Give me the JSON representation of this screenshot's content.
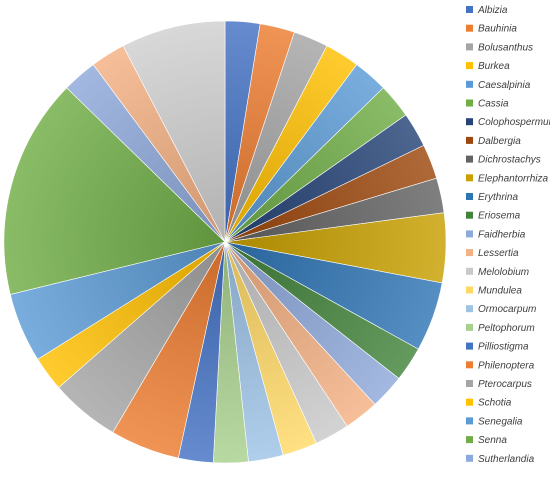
{
  "chart_data": {
    "type": "pie",
    "title": "",
    "legend_position": "right",
    "slices": [
      {
        "label": "Albizia",
        "value": 3,
        "color": "#4472C4"
      },
      {
        "label": "Bauhinia",
        "value": 3,
        "color": "#ED7D31"
      },
      {
        "label": "Bolusanthus",
        "value": 3,
        "color": "#A5A5A5"
      },
      {
        "label": "Burkea",
        "value": 3,
        "color": "#FFC000"
      },
      {
        "label": "Caesalpinia",
        "value": 3,
        "color": "#5B9BD5"
      },
      {
        "label": "Cassia",
        "value": 3,
        "color": "#70AD47"
      },
      {
        "label": "Colophospermum",
        "value": 3,
        "color": "#264478"
      },
      {
        "label": "Dalbergia",
        "value": 3,
        "color": "#9E480E"
      },
      {
        "label": "Dichrostachys",
        "value": 3,
        "color": "#636363"
      },
      {
        "label": "Elephantorrhiza",
        "value": 6,
        "color": "#C8A000"
      },
      {
        "label": "Erythrina",
        "value": 6,
        "color": "#2F75B5"
      },
      {
        "label": "Eriosema",
        "value": 3,
        "color": "#43843C"
      },
      {
        "label": "Faidherbia",
        "value": 3,
        "color": "#8EA9DB"
      },
      {
        "label": "Lessertia",
        "value": 3,
        "color": "#F4B183"
      },
      {
        "label": "Melolobium",
        "value": 3,
        "color": "#C9C9C9"
      },
      {
        "label": "Mundulea",
        "value": 3,
        "color": "#FFD966"
      },
      {
        "label": "Ormocarpum",
        "value": 3,
        "color": "#9DC3E6"
      },
      {
        "label": "Peltophorum",
        "value": 3,
        "color": "#A9D18E"
      },
      {
        "label": "Pilliostigma",
        "value": 3,
        "color": "#4472C4"
      },
      {
        "label": "Philenoptera",
        "value": 6,
        "color": "#ED7D31"
      },
      {
        "label": "Pterocarpus",
        "value": 6,
        "color": "#A5A5A5"
      },
      {
        "label": "Schotia",
        "value": 3,
        "color": "#FFC000"
      },
      {
        "label": "Senegalia",
        "value": 6,
        "color": "#5B9BD5"
      },
      {
        "label": "Senna",
        "value": 19,
        "color": "#70AD47"
      },
      {
        "label": "Sutherlandia",
        "value": 3,
        "color": "#8EA9DB"
      },
      {
        "label": "",
        "value": 3,
        "color": "#F4B183"
      },
      {
        "label": "",
        "value": 9,
        "color": "#D0D0D0"
      }
    ]
  }
}
